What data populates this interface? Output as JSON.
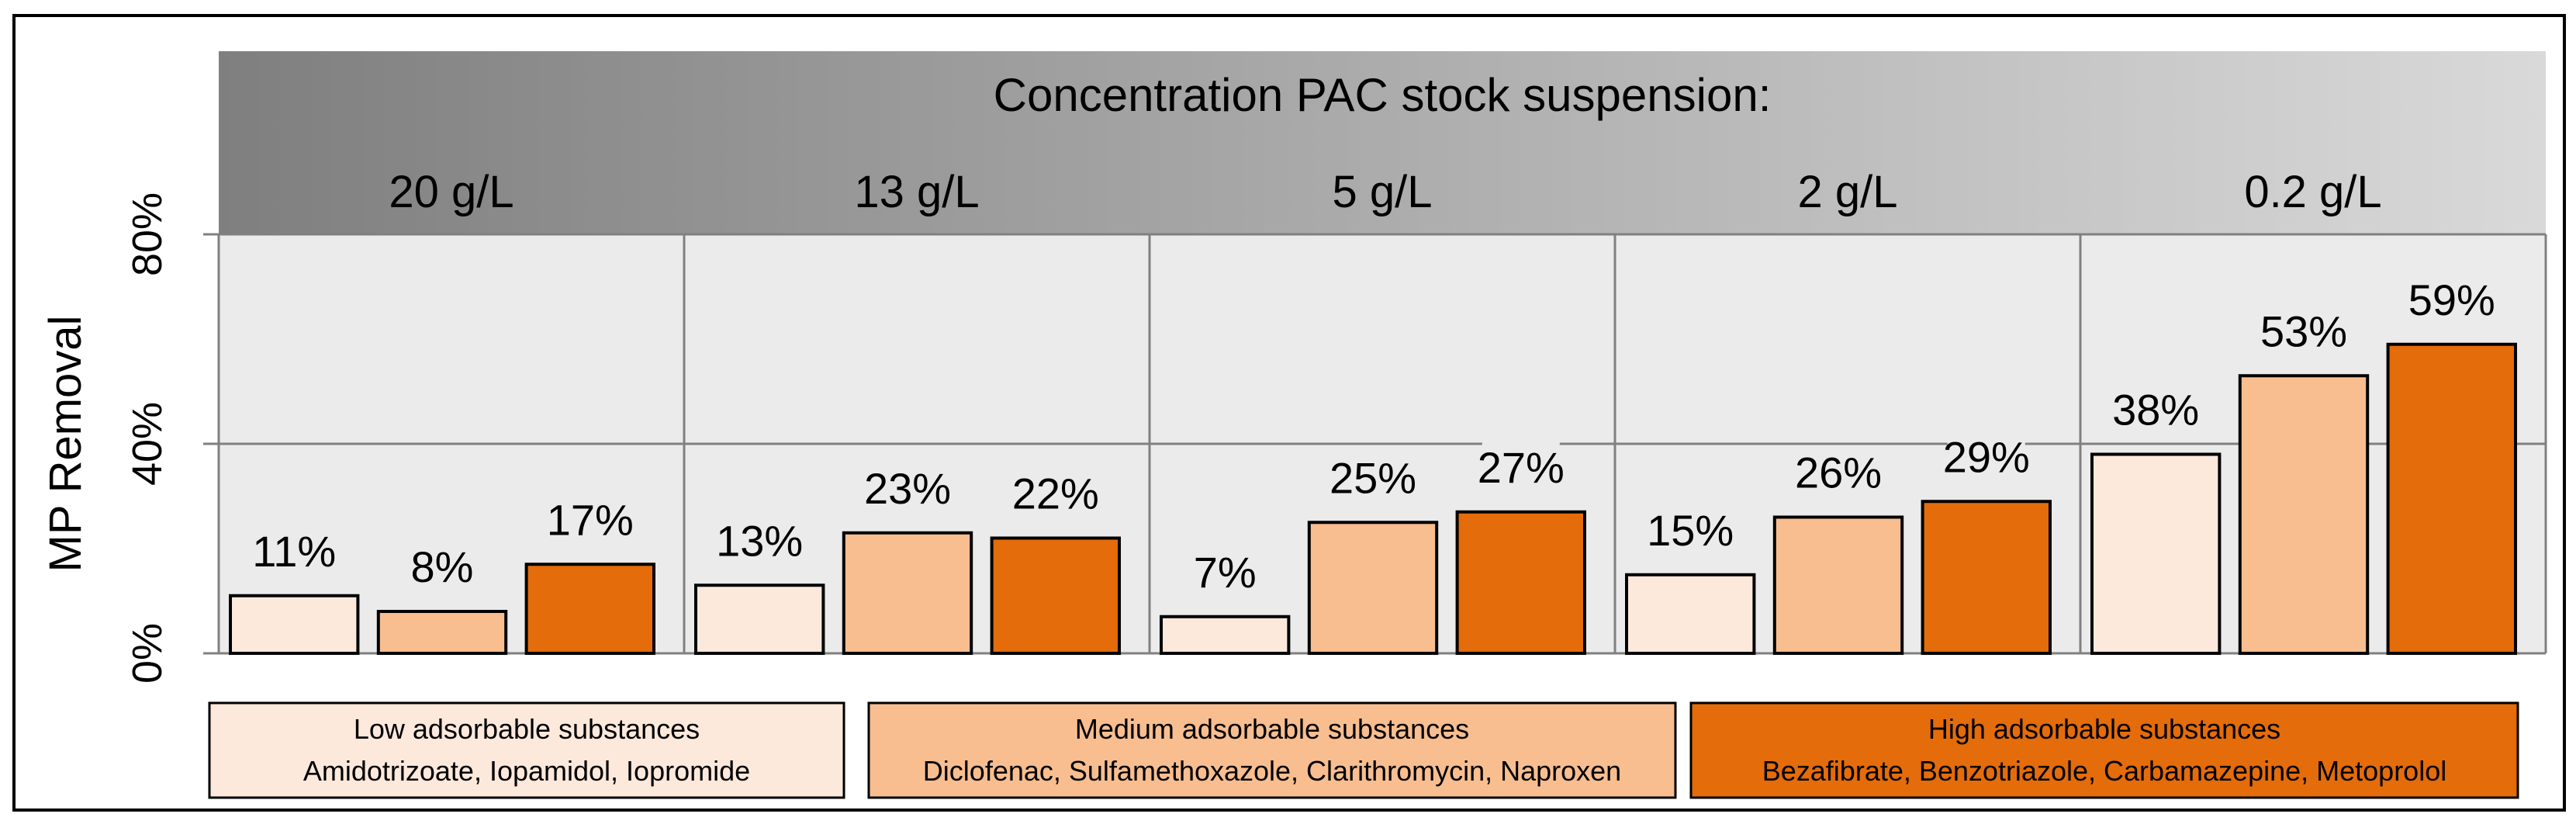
{
  "chart_data": {
    "type": "bar",
    "header_title": "Concentration PAC stock suspension:",
    "categories": [
      "20 g/L",
      "13 g/L",
      "5 g/L",
      "2 g/L",
      "0.2 g/L"
    ],
    "ylabel": "MP Removal",
    "ylim": [
      0,
      80
    ],
    "yticks": [
      0,
      40,
      80
    ],
    "ytick_labels": [
      "0%",
      "40%",
      "80%"
    ],
    "grid": true,
    "series": [
      {
        "name": "Low adsorbable substances",
        "detail": "Amidotrizoate, Iopamidol, Iopromide",
        "color": "#FCE9DC",
        "values": [
          11,
          13,
          7,
          15,
          38
        ],
        "labels": [
          "11%",
          "13%",
          "7%",
          "15%",
          "38%"
        ]
      },
      {
        "name": "Medium adsorbable substances",
        "detail": "Diclofenac, Sulfamethoxazole, Clarithromycin, Naproxen",
        "color": "#F8BE90",
        "values": [
          8,
          23,
          25,
          26,
          53
        ],
        "labels": [
          "8%",
          "23%",
          "25%",
          "26%",
          "53%"
        ]
      },
      {
        "name": "High adsorbable substances",
        "detail": "Bezafibrate,  Benzotriazole, Carbamazepine, Metoprolol",
        "color": "#E46C0A",
        "values": [
          17,
          22,
          27,
          29,
          59
        ],
        "labels": [
          "17%",
          "22%",
          "27%",
          "29%",
          "59%"
        ]
      }
    ],
    "legend_position": "bottom",
    "colors": {
      "plot_background": "#EBEBEB",
      "header_gradient_start": "#7F7F7F",
      "header_gradient_end": "#D9D9D9",
      "grid": "#808080",
      "bar_outline": "#000000"
    }
  }
}
